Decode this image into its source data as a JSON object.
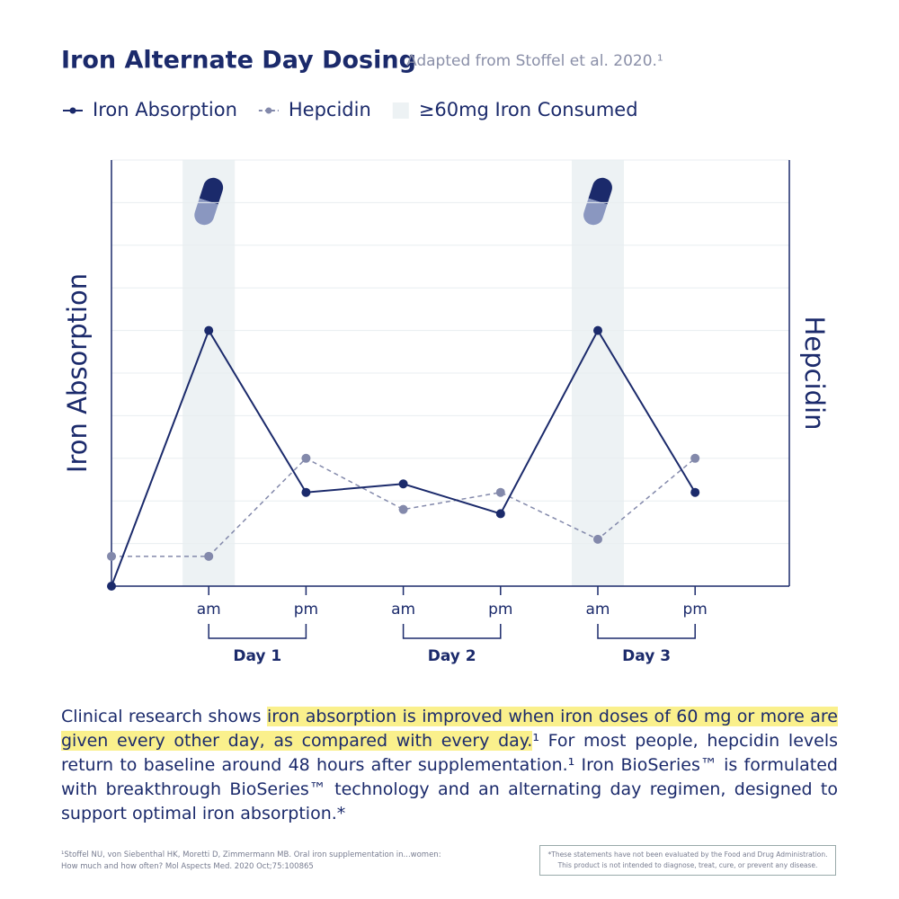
{
  "chart_data": {
    "type": "line",
    "title": "Iron Alternate Day Dosing",
    "subtitle": "Adapted from Stoffel et al. 2020.¹",
    "categories": [
      null,
      "am",
      "pm",
      "am",
      "pm",
      "am",
      "pm"
    ],
    "series": [
      {
        "name": "Iron Absorption",
        "color": "#1b2a6b",
        "values": [
          0,
          6.0,
          2.2,
          2.4,
          1.7,
          6.0,
          2.2
        ]
      },
      {
        "name": "Hepcidin",
        "color": "#8389ab",
        "axis": "y2",
        "values": [
          0.7,
          0.7,
          3.0,
          1.8,
          2.2,
          1.1,
          3.0
        ]
      }
    ],
    "shaded": {
      "name": "≥60mg Iron Consumed",
      "color": "#edf2f4",
      "indices": [
        1,
        5
      ]
    },
    "groups": [
      {
        "label": "Day 1",
        "span": [
          1,
          2
        ]
      },
      {
        "label": "Day 2",
        "span": [
          3,
          4
        ]
      },
      {
        "label": "Day 3",
        "span": [
          5,
          6
        ]
      }
    ],
    "y_label": "Iron Absorption",
    "y2_label": "Hepcidin",
    "ylim": [
      0,
      10
    ],
    "yticks": [
      0,
      1,
      2,
      3,
      4,
      5,
      6,
      7,
      8,
      9,
      10
    ],
    "y2lim": [
      0,
      10
    ],
    "grid": true
  },
  "body": {
    "segments": [
      "Clinical research shows ",
      "iron absorption is improved when iron doses of 60 mg or more are given every other day, as compared with every day.",
      "¹ For most people, hepcidin levels return to baseline around 48 hours after supplementation.¹ Iron BioSeries™ is formulated with breakthrough BioSeries™ technology and an alternating day regimen, designed to support optimal iron absorption.*"
    ],
    "highlight": 1
  },
  "footnote": [
    "¹Stoffel NU, von Siebenthal HK, Moretti D, Zimmermann MB. Oral iron supplementation in...women:",
    "How much and how often? Mol Aspects Med. 2020 Oct;75:100865"
  ],
  "disclaimer": [
    "*These statements have not been evaluated by the Food and Drug Administration.",
    "This product is not intended to diagnose, treat, cure, or prevent any disease."
  ]
}
